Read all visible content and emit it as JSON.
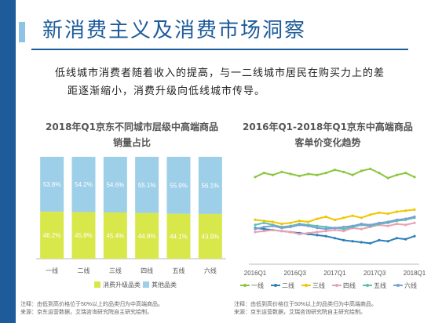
{
  "slide": {
    "title": "新消费主义及消费市场洞察",
    "intro_line1": "低线城市消费者随着收入的提高，与一二线城市居民在购买力上的差",
    "intro_line2": "距逐渐缩小，消费升级向低线城市传导。"
  },
  "colors": {
    "brand": "#1d5b9a",
    "upgrade": "#d8e84a",
    "other": "#9ecfe8"
  },
  "chart_data": [
    {
      "type": "bar",
      "stacked": true,
      "title_line1": "2018年Q1京东不同城市层级中高端商品",
      "title_line2": "销量占比",
      "categories": [
        "一线",
        "二线",
        "三线",
        "四线",
        "五线",
        "六线"
      ],
      "ylim": [
        0,
        100
      ],
      "series": [
        {
          "name": "消费升级品类",
          "values": [
            46.2,
            45.8,
            45.4,
            44.9,
            44.1,
            43.9
          ],
          "labels": [
            "46.2%",
            "45.8%",
            "45.4%",
            "44.9%",
            "44.1%",
            "43.9%"
          ],
          "color": "#d8e84a"
        },
        {
          "name": "其他品类",
          "values": [
            53.8,
            54.2,
            54.6,
            55.1,
            55.9,
            56.1
          ],
          "labels": [
            "53.8%",
            "54.2%",
            "54.6%",
            "55.1%",
            "55.9%",
            "56.1%"
          ],
          "color": "#9ecfe8"
        }
      ],
      "legend_position": "bottom",
      "note_line1": "注释：由低到高价格位于50%以上的品类归为中高端商品。",
      "note_line2": "来源：京东运营数据，艾瑞咨询研究院自主研究绘制。"
    },
    {
      "type": "line",
      "title_line1": "2016年Q1-2018年Q1京东中高端商品",
      "title_line2": "客单价变化趋势",
      "x_ticks": [
        "2016Q1",
        "2016Q3",
        "2017Q1",
        "2017Q3",
        "2018Q1"
      ],
      "ylim": [
        0,
        100
      ],
      "grid": false,
      "series": [
        {
          "name": "一线",
          "color": "#8cc63f",
          "values": [
            84,
            88,
            86,
            89,
            87,
            85,
            87,
            86,
            88,
            91,
            89,
            86,
            90,
            92,
            88,
            83,
            86,
            88,
            84
          ]
        },
        {
          "name": "二线",
          "color": "#2c7fb8",
          "values": [
            34,
            33,
            32,
            31,
            30,
            29,
            28,
            27,
            26,
            24,
            22,
            21,
            20,
            19,
            22,
            21,
            24,
            23,
            26
          ]
        },
        {
          "name": "三线",
          "color": "#f2c500",
          "values": [
            42,
            41,
            40,
            38,
            39,
            41,
            40,
            43,
            45,
            42,
            44,
            46,
            44,
            47,
            49,
            48,
            50,
            51,
            52
          ]
        },
        {
          "name": "四线",
          "color": "#e9a0b2",
          "values": [
            30,
            31,
            32,
            31,
            30,
            28,
            29,
            30,
            31,
            32,
            31,
            34,
            33,
            35,
            37,
            36,
            38,
            37,
            39
          ]
        },
        {
          "name": "五线",
          "color": "#5bc0ae",
          "values": [
            37,
            39,
            37,
            35,
            36,
            38,
            37,
            36,
            35,
            34,
            33,
            35,
            37,
            36,
            38,
            39,
            41,
            42,
            44
          ]
        },
        {
          "name": "六线",
          "color": "#7a9fd6",
          "values": [
            33,
            35,
            36,
            34,
            35,
            37,
            36,
            34,
            33,
            34,
            35,
            36,
            38,
            37,
            39,
            40,
            42,
            43,
            45
          ]
        }
      ],
      "legend_position": "bottom",
      "note_line1": "注释：由低到高价格位于50%以上的品类归为中高端商品。",
      "note_line2": "来源：京东运营数据，艾瑞咨询研究院自主研究绘制。"
    }
  ]
}
